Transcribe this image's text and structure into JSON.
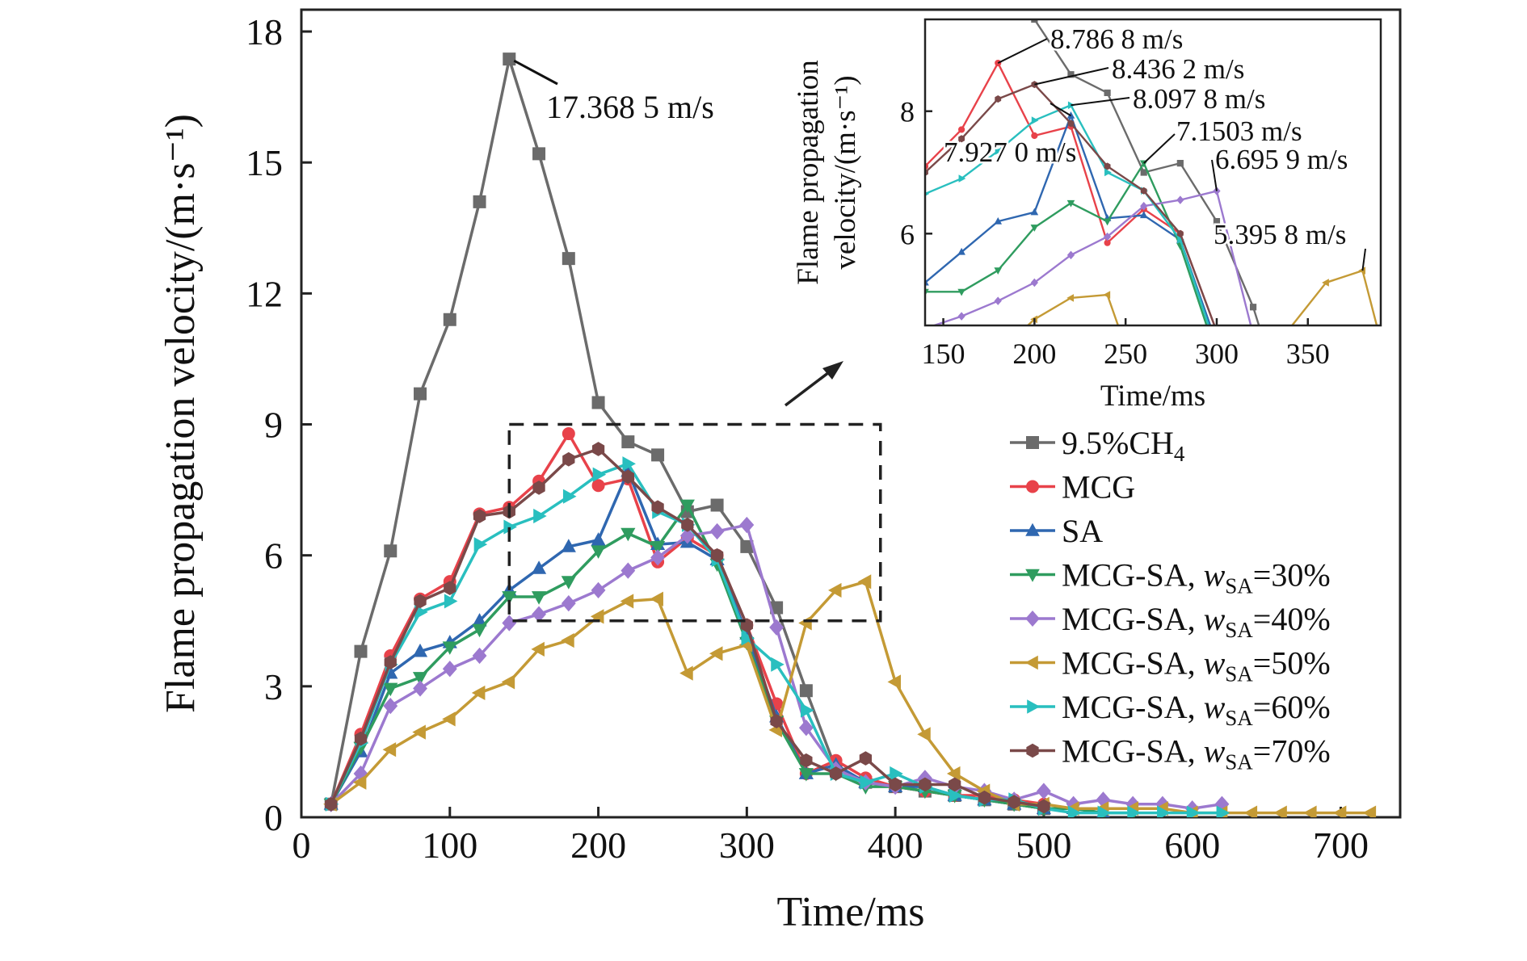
{
  "chart_data": {
    "type": "line",
    "xlabel": "Time/ms",
    "ylabel": "Flame propagation velocity/(m·s⁻¹)",
    "xlim": [
      0,
      740
    ],
    "ylim": [
      0,
      18.5
    ],
    "xticks": [
      0,
      100,
      200,
      300,
      400,
      500,
      600,
      700
    ],
    "yticks": [
      0,
      3,
      6,
      9,
      12,
      15,
      18
    ],
    "grid": false,
    "legend_position": "right",
    "series": [
      {
        "name": "9.5%CH4",
        "label_base": "9.5%CH",
        "label_sub": "4",
        "color": "#6b6b6b",
        "marker": "square",
        "x": [
          20,
          40,
          60,
          80,
          100,
          120,
          140,
          160,
          180,
          200,
          220,
          240,
          260,
          280,
          300,
          320,
          340,
          360,
          380,
          400,
          420,
          440,
          460,
          480,
          500
        ],
        "y": [
          0.3,
          3.8,
          6.1,
          9.7,
          11.4,
          14.1,
          17.3685,
          15.2,
          12.8,
          9.5,
          8.6,
          8.3,
          7.0,
          7.15,
          6.2,
          4.8,
          2.9,
          1.1,
          0.8,
          0.7,
          0.6,
          0.5,
          0.4,
          0.3,
          0.2
        ]
      },
      {
        "name": "MCG",
        "label_base": "MCG",
        "label_sub": "",
        "color": "#e8424a",
        "marker": "circle",
        "x": [
          20,
          40,
          60,
          80,
          100,
          120,
          140,
          160,
          180,
          200,
          220,
          240,
          260,
          280,
          300,
          320,
          340,
          360,
          380,
          400,
          420,
          440,
          460,
          480,
          500
        ],
        "y": [
          0.3,
          1.9,
          3.7,
          5.0,
          5.4,
          6.95,
          7.1,
          7.7,
          8.7868,
          7.6,
          7.75,
          5.85,
          6.4,
          6.0,
          4.4,
          2.6,
          1.0,
          1.3,
          0.9,
          0.7,
          0.6,
          0.5,
          0.5,
          0.4,
          0.3
        ]
      },
      {
        "name": "SA",
        "label_base": "SA",
        "label_sub": "",
        "color": "#2f67b0",
        "marker": "triangle-up",
        "x": [
          20,
          40,
          60,
          80,
          100,
          120,
          140,
          160,
          180,
          200,
          220,
          240,
          260,
          280,
          300,
          320,
          340,
          360,
          380,
          400,
          420,
          440,
          460,
          480,
          500,
          520,
          540
        ],
        "y": [
          0.3,
          1.5,
          3.3,
          3.8,
          4.0,
          4.5,
          5.2,
          5.7,
          6.2,
          6.35,
          7.927,
          6.25,
          6.3,
          5.9,
          4.2,
          2.3,
          1.0,
          1.2,
          0.8,
          0.7,
          0.7,
          0.5,
          0.4,
          0.3,
          0.2,
          0.2,
          0.1
        ]
      },
      {
        "name": "MCG-SA, wSA=30%",
        "label_base": "MCG-SA, ",
        "label_italic": "w",
        "label_sub": "SA",
        "label_tail": "=30%",
        "color": "#2f9c5f",
        "marker": "triangle-down",
        "x": [
          20,
          40,
          60,
          80,
          100,
          120,
          140,
          160,
          180,
          200,
          220,
          240,
          260,
          280,
          300,
          320,
          340,
          360,
          380,
          400,
          420,
          440,
          460,
          480,
          500,
          520,
          540,
          560
        ],
        "y": [
          0.3,
          1.6,
          2.95,
          3.2,
          3.9,
          4.3,
          5.05,
          5.05,
          5.4,
          6.1,
          6.5,
          6.2,
          7.1503,
          5.8,
          4.0,
          2.2,
          1.0,
          1.0,
          0.7,
          0.7,
          0.6,
          0.5,
          0.4,
          0.3,
          0.2,
          0.2,
          0.1,
          0.1
        ]
      },
      {
        "name": "MCG-SA, wSA=40%",
        "label_base": "MCG-SA, ",
        "label_italic": "w",
        "label_sub": "SA",
        "label_tail": "=40%",
        "color": "#9c79cf",
        "marker": "diamond",
        "x": [
          20,
          40,
          60,
          80,
          100,
          120,
          140,
          160,
          180,
          200,
          220,
          240,
          260,
          280,
          300,
          320,
          340,
          360,
          380,
          400,
          420,
          440,
          460,
          480,
          500,
          520,
          540,
          560,
          580,
          600,
          620
        ],
        "y": [
          0.3,
          1.0,
          2.55,
          2.95,
          3.4,
          3.7,
          4.45,
          4.65,
          4.9,
          5.2,
          5.65,
          5.95,
          6.45,
          6.55,
          6.6959,
          4.35,
          2.05,
          1.1,
          0.8,
          0.7,
          0.9,
          0.7,
          0.6,
          0.4,
          0.6,
          0.3,
          0.4,
          0.3,
          0.3,
          0.2,
          0.3
        ]
      },
      {
        "name": "MCG-SA, wSA=50%",
        "label_base": "MCG-SA, ",
        "label_italic": "w",
        "label_sub": "SA",
        "label_tail": "=50%",
        "color": "#c49a35",
        "marker": "triangle-left",
        "x": [
          20,
          40,
          60,
          80,
          100,
          120,
          140,
          160,
          180,
          200,
          220,
          240,
          260,
          280,
          300,
          320,
          340,
          360,
          380,
          400,
          420,
          440,
          460,
          480,
          500,
          520,
          540,
          560,
          580,
          600,
          620,
          640,
          660,
          680,
          700,
          720
        ],
        "y": [
          0.3,
          0.8,
          1.55,
          1.95,
          2.25,
          2.85,
          3.1,
          3.85,
          4.05,
          4.6,
          4.95,
          5.0,
          3.3,
          3.75,
          3.95,
          2.0,
          4.45,
          5.2,
          5.3958,
          3.1,
          1.9,
          1.0,
          0.6,
          0.3,
          0.3,
          0.2,
          0.2,
          0.2,
          0.2,
          0.1,
          0.1,
          0.1,
          0.1,
          0.1,
          0.1,
          0.1
        ]
      },
      {
        "name": "MCG-SA, wSA=60%",
        "label_base": "MCG-SA, ",
        "label_italic": "w",
        "label_sub": "SA",
        "label_tail": "=60%",
        "color": "#29bfbf",
        "marker": "triangle-right",
        "x": [
          20,
          40,
          60,
          80,
          100,
          120,
          140,
          160,
          180,
          200,
          220,
          240,
          260,
          280,
          300,
          320,
          340,
          360,
          380,
          400,
          420,
          440,
          460,
          480,
          500,
          520,
          540,
          560,
          580,
          600,
          620
        ],
        "y": [
          0.3,
          1.7,
          3.5,
          4.7,
          4.95,
          6.25,
          6.65,
          6.9,
          7.35,
          7.85,
          8.0978,
          7.0,
          6.7,
          5.9,
          4.1,
          3.5,
          2.45,
          1.0,
          0.8,
          1.0,
          0.7,
          0.5,
          0.4,
          0.4,
          0.2,
          0.1,
          0.1,
          0.1,
          0.1,
          0.1,
          0.1
        ]
      },
      {
        "name": "MCG-SA, wSA=70%",
        "label_base": "MCG-SA, ",
        "label_italic": "w",
        "label_sub": "SA",
        "label_tail": "=70%",
        "color": "#7a4949",
        "marker": "hexagon",
        "x": [
          20,
          40,
          60,
          80,
          100,
          120,
          140,
          160,
          180,
          200,
          220,
          240,
          260,
          280,
          300,
          320,
          340,
          360,
          380,
          400,
          420,
          440,
          460,
          480,
          500
        ],
        "y": [
          0.3,
          1.8,
          3.55,
          4.95,
          5.25,
          6.9,
          7.0,
          7.55,
          8.2,
          8.4362,
          7.8,
          7.1,
          6.7,
          6.0,
          4.4,
          2.2,
          1.3,
          1.0,
          1.35,
          0.75,
          0.75,
          0.75,
          0.45,
          0.35,
          0.25
        ]
      }
    ],
    "peak_annotation": {
      "text": "17.368 5 m/s",
      "x": 140,
      "y": 17.3685
    },
    "zoom_box": {
      "x": [
        140,
        390
      ],
      "y": [
        4.5,
        9.0
      ]
    },
    "inset": {
      "xlim": [
        140,
        390
      ],
      "ylim": [
        4.5,
        9.5
      ],
      "xticks": [
        150,
        200,
        250,
        300,
        350
      ],
      "yticks": [
        6,
        8
      ],
      "xlabel": "Time/ms",
      "ylabel_line1": "Flame propagation",
      "ylabel_line2": "velocity/(m·s⁻¹)",
      "annotations": [
        {
          "text": "8.786 8 m/s",
          "series": 1,
          "x": 180,
          "y": 8.7868
        },
        {
          "text": "8.436 2 m/s",
          "series": 7,
          "x": 200,
          "y": 8.4362
        },
        {
          "text": "8.097 8 m/s",
          "series": 6,
          "x": 220,
          "y": 8.0978
        },
        {
          "text": "7.927 0 m/s",
          "series": 2,
          "x": 220,
          "y": 7.927
        },
        {
          "text": "7.1503 m/s",
          "series": 3,
          "x": 260,
          "y": 7.1503
        },
        {
          "text": "6.695 9 m/s",
          "series": 4,
          "x": 300,
          "y": 6.6959
        },
        {
          "text": "5.395 8 m/s",
          "series": 5,
          "x": 380,
          "y": 5.3958
        }
      ]
    }
  }
}
